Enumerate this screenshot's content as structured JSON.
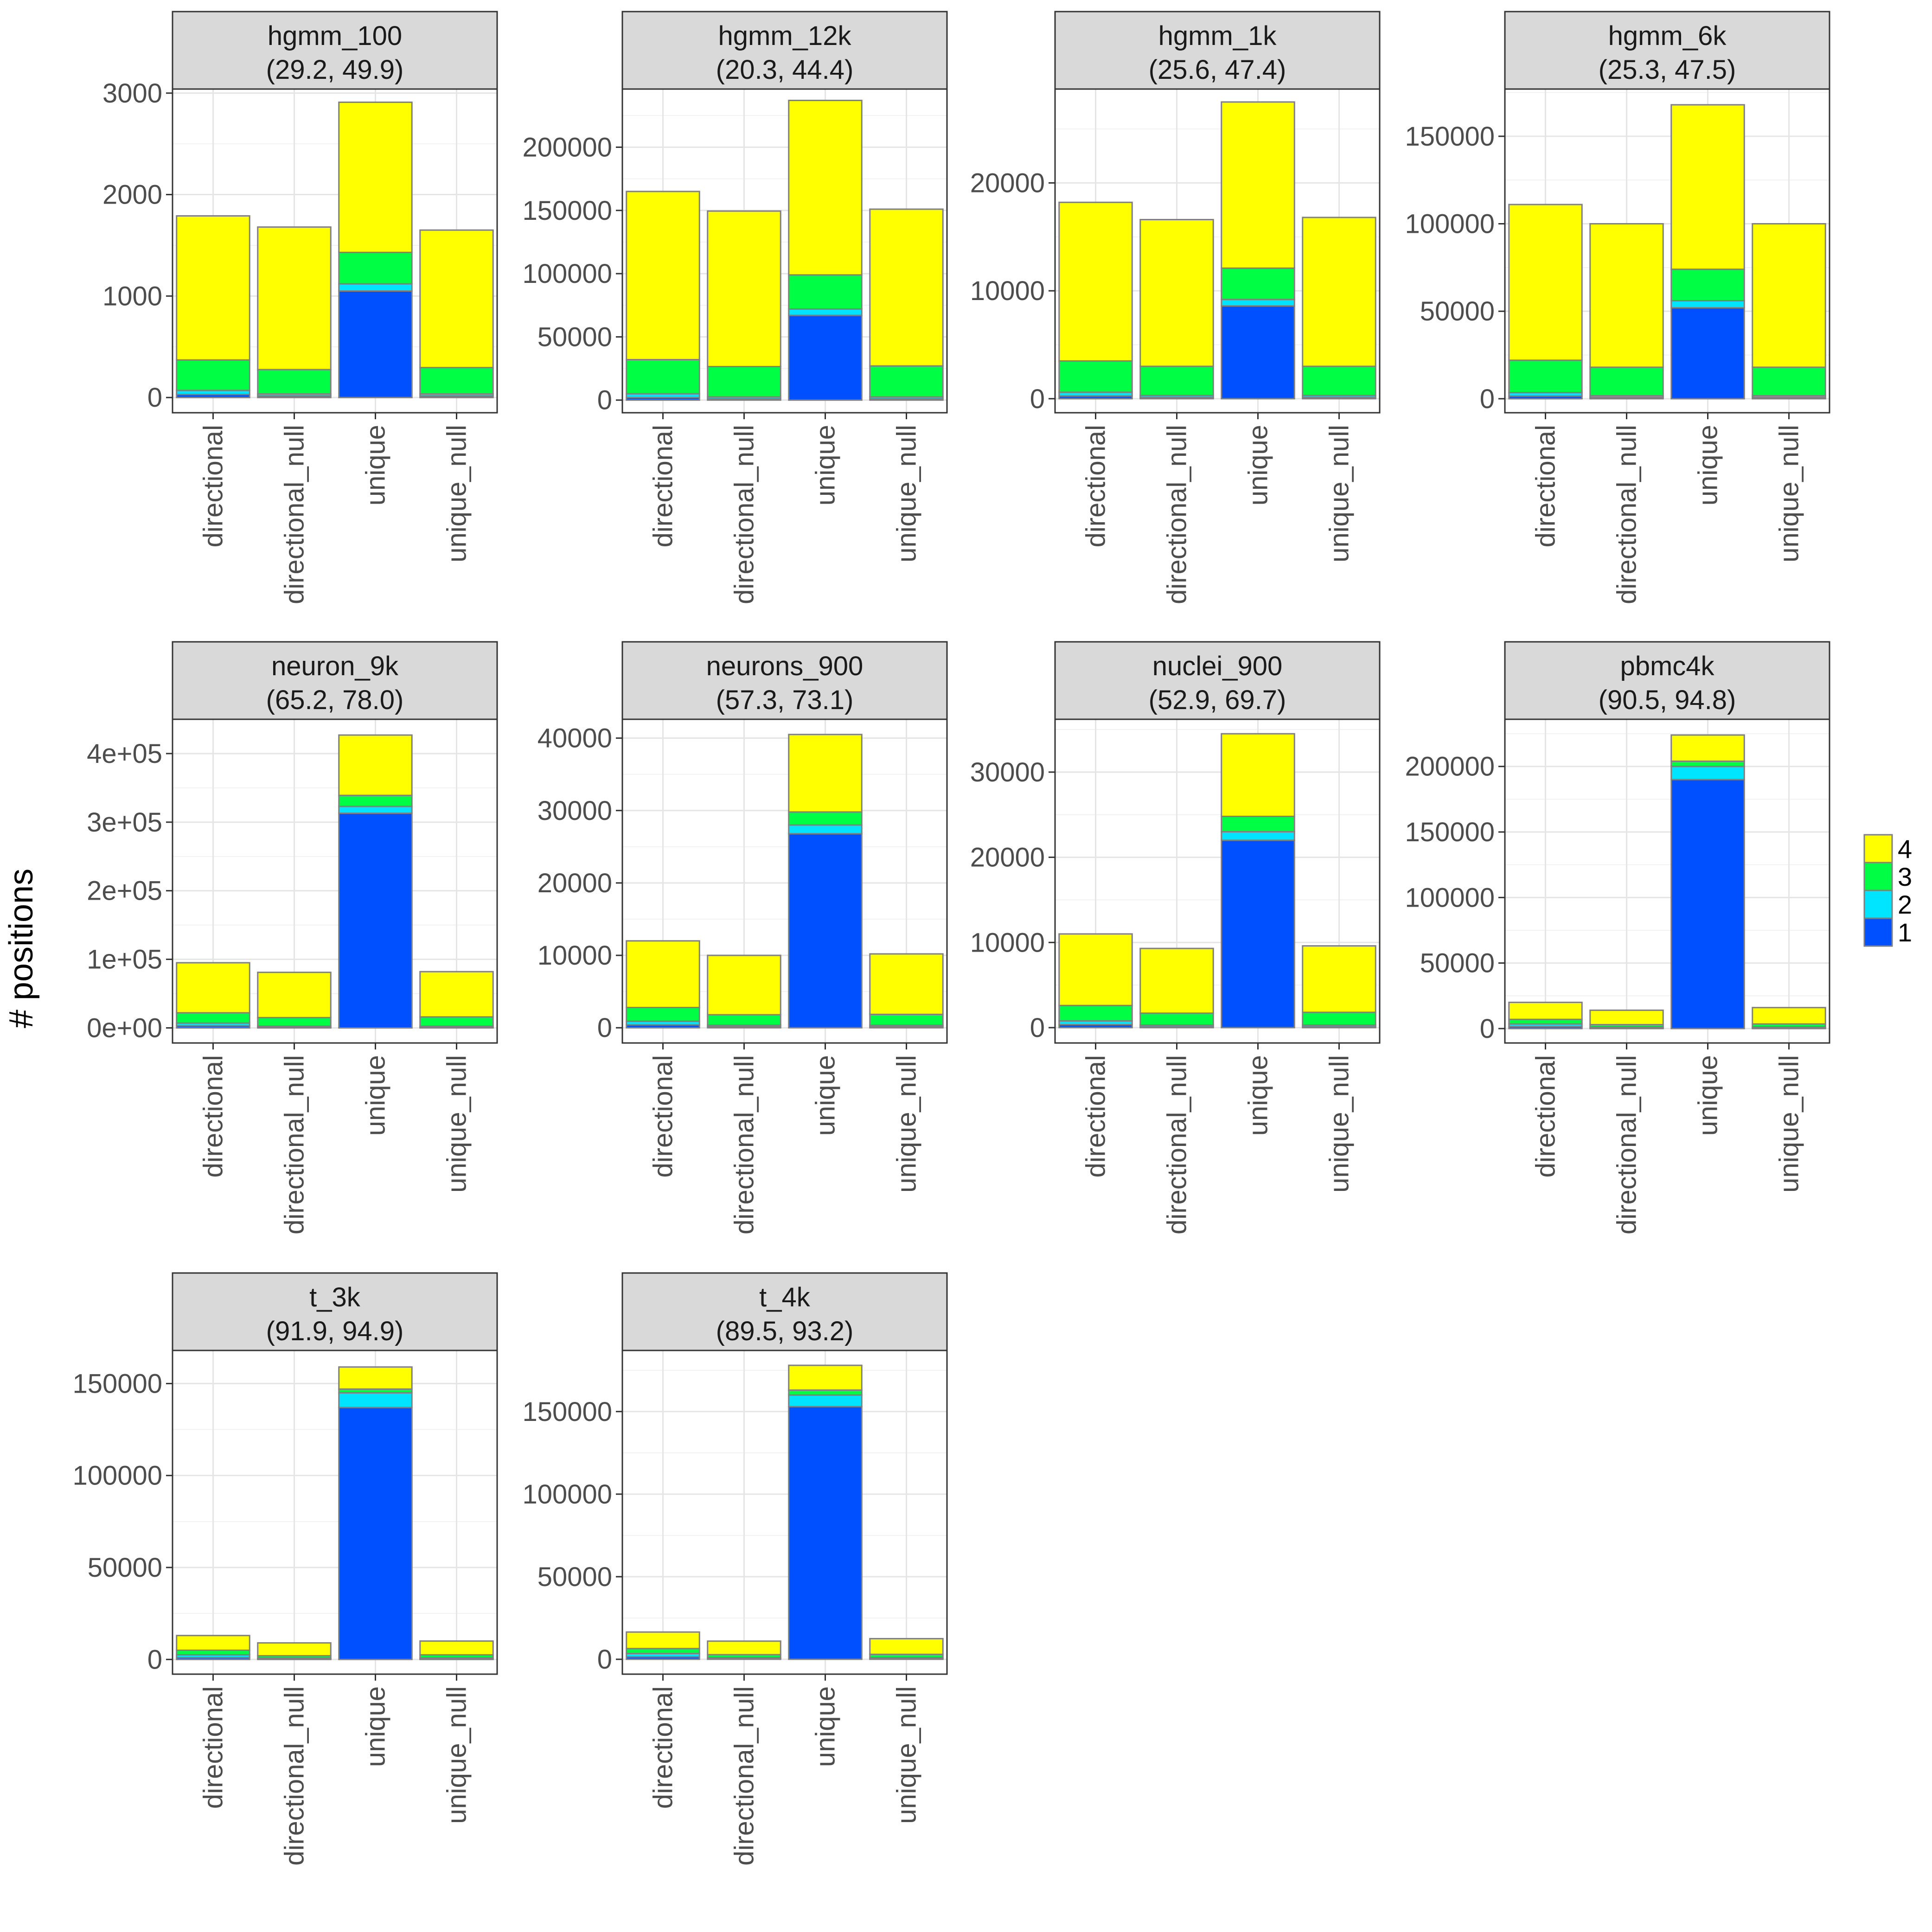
{
  "figure": {
    "ylabel": "# positions",
    "legend": {
      "placement": "right",
      "items": [
        {
          "label": "4",
          "color": "#FFFF00"
        },
        {
          "label": "3",
          "color": "#00FF44"
        },
        {
          "label": "2",
          "color": "#00E5FF"
        },
        {
          "label": "1",
          "color": "#0050FF"
        }
      ]
    },
    "bar_outline_color": "#808080",
    "strip_fill_color": "#D9D9D9"
  },
  "chart_data": [
    {
      "type": "bar",
      "stacked": true,
      "strip_title": "hgmm_100",
      "strip_subtitle": "(29.2, 49.9)",
      "categories": [
        "directional",
        "directional_null",
        "unique",
        "unique_null"
      ],
      "ylim": [
        -150,
        3040
      ],
      "yticks": [
        {
          "value": 0,
          "label": "0"
        },
        {
          "value": 1000,
          "label": "1000"
        },
        {
          "value": 2000,
          "label": "2000"
        },
        {
          "value": 3000,
          "label": "3000"
        }
      ],
      "series": [
        {
          "name": "1",
          "values": [
            30,
            15,
            1050,
            15
          ]
        },
        {
          "name": "2",
          "values": [
            40,
            20,
            70,
            20
          ]
        },
        {
          "name": "3",
          "values": [
            300,
            240,
            310,
            260
          ]
        },
        {
          "name": "4",
          "values": [
            1420,
            1405,
            1480,
            1355
          ]
        }
      ]
    },
    {
      "type": "bar",
      "stacked": true,
      "strip_title": "hgmm_12k",
      "strip_subtitle": "(20.3, 44.4)",
      "categories": [
        "directional",
        "directional_null",
        "unique",
        "unique_null"
      ],
      "ylim": [
        -10000,
        246000
      ],
      "yticks": [
        {
          "value": 0,
          "label": "0"
        },
        {
          "value": 50000,
          "label": "50000"
        },
        {
          "value": 100000,
          "label": "100000"
        },
        {
          "value": 150000,
          "label": "150000"
        },
        {
          "value": 200000,
          "label": "200000"
        }
      ],
      "series": [
        {
          "name": "1",
          "values": [
            2000,
            1000,
            67000,
            1000
          ]
        },
        {
          "name": "2",
          "values": [
            3000,
            1500,
            5000,
            1500
          ]
        },
        {
          "name": "3",
          "values": [
            27000,
            24000,
            27000,
            24500
          ]
        },
        {
          "name": "4",
          "values": [
            133000,
            123000,
            138000,
            124000
          ]
        }
      ]
    },
    {
      "type": "bar",
      "stacked": true,
      "strip_title": "hgmm_1k",
      "strip_subtitle": "(25.6, 47.4)",
      "categories": [
        "directional",
        "directional_null",
        "unique",
        "unique_null"
      ],
      "ylim": [
        -1300,
        28700
      ],
      "yticks": [
        {
          "value": 0,
          "label": "0"
        },
        {
          "value": 10000,
          "label": "10000"
        },
        {
          "value": 20000,
          "label": "20000"
        }
      ],
      "series": [
        {
          "name": "1",
          "values": [
            250,
            120,
            8600,
            120
          ]
        },
        {
          "name": "2",
          "values": [
            350,
            180,
            600,
            180
          ]
        },
        {
          "name": "3",
          "values": [
            2900,
            2700,
            2900,
            2700
          ]
        },
        {
          "name": "4",
          "values": [
            14700,
            13600,
            15400,
            13800
          ]
        }
      ]
    },
    {
      "type": "bar",
      "stacked": true,
      "strip_title": "hgmm_6k",
      "strip_subtitle": "(25.3, 47.5)",
      "categories": [
        "directional",
        "directional_null",
        "unique",
        "unique_null"
      ],
      "ylim": [
        -8000,
        177000
      ],
      "yticks": [
        {
          "value": 0,
          "label": "0"
        },
        {
          "value": 50000,
          "label": "50000"
        },
        {
          "value": 100000,
          "label": "100000"
        },
        {
          "value": 150000,
          "label": "150000"
        }
      ],
      "series": [
        {
          "name": "1",
          "values": [
            1500,
            700,
            52000,
            700
          ]
        },
        {
          "name": "2",
          "values": [
            2000,
            1000,
            4000,
            1000
          ]
        },
        {
          "name": "3",
          "values": [
            18500,
            16300,
            18000,
            16300
          ]
        },
        {
          "name": "4",
          "values": [
            89000,
            82000,
            94000,
            82000
          ]
        }
      ]
    },
    {
      "type": "bar",
      "stacked": true,
      "strip_title": "neuron_9k",
      "strip_subtitle": "(65.2, 78.0)",
      "categories": [
        "directional",
        "directional_null",
        "unique",
        "unique_null"
      ],
      "ylim": [
        -22000,
        450000
      ],
      "yticks": [
        {
          "value": 0,
          "label": "0e+00"
        },
        {
          "value": 100000,
          "label": "1e+05"
        },
        {
          "value": 200000,
          "label": "2e+05"
        },
        {
          "value": 300000,
          "label": "3e+05"
        },
        {
          "value": 400000,
          "label": "4e+05"
        }
      ],
      "series": [
        {
          "name": "1",
          "values": [
            3000,
            1000,
            313000,
            1000
          ]
        },
        {
          "name": "2",
          "values": [
            4000,
            1500,
            10000,
            1500
          ]
        },
        {
          "name": "3",
          "values": [
            15000,
            12500,
            16000,
            13500
          ]
        },
        {
          "name": "4",
          "values": [
            73000,
            66000,
            88000,
            66000
          ]
        }
      ]
    },
    {
      "type": "bar",
      "stacked": true,
      "strip_title": "neurons_900",
      "strip_subtitle": "(57.3, 73.1)",
      "categories": [
        "directional",
        "directional_null",
        "unique",
        "unique_null"
      ],
      "ylim": [
        -2100,
        42600
      ],
      "yticks": [
        {
          "value": 0,
          "label": "0"
        },
        {
          "value": 10000,
          "label": "10000"
        },
        {
          "value": 20000,
          "label": "20000"
        },
        {
          "value": 30000,
          "label": "30000"
        },
        {
          "value": 40000,
          "label": "40000"
        }
      ],
      "series": [
        {
          "name": "1",
          "values": [
            400,
            150,
            26800,
            150
          ]
        },
        {
          "name": "2",
          "values": [
            500,
            200,
            1200,
            200
          ]
        },
        {
          "name": "3",
          "values": [
            1900,
            1450,
            1800,
            1500
          ]
        },
        {
          "name": "4",
          "values": [
            9200,
            8200,
            10700,
            8350
          ]
        }
      ]
    },
    {
      "type": "bar",
      "stacked": true,
      "strip_title": "nuclei_900",
      "strip_subtitle": "(52.9, 69.7)",
      "categories": [
        "directional",
        "directional_null",
        "unique",
        "unique_null"
      ],
      "ylim": [
        -1800,
        36200
      ],
      "yticks": [
        {
          "value": 0,
          "label": "0"
        },
        {
          "value": 10000,
          "label": "10000"
        },
        {
          "value": 20000,
          "label": "20000"
        },
        {
          "value": 30000,
          "label": "30000"
        }
      ],
      "series": [
        {
          "name": "1",
          "values": [
            350,
            120,
            22000,
            120
          ]
        },
        {
          "name": "2",
          "values": [
            450,
            180,
            1000,
            180
          ]
        },
        {
          "name": "3",
          "values": [
            1800,
            1400,
            1800,
            1500
          ]
        },
        {
          "name": "4",
          "values": [
            8400,
            7600,
            9700,
            7800
          ]
        }
      ]
    },
    {
      "type": "bar",
      "stacked": true,
      "strip_title": "pbmc4k",
      "strip_subtitle": "(90.5, 94.8)",
      "categories": [
        "directional",
        "directional_null",
        "unique",
        "unique_null"
      ],
      "ylim": [
        -11000,
        236000
      ],
      "yticks": [
        {
          "value": 0,
          "label": "0"
        },
        {
          "value": 50000,
          "label": "50000"
        },
        {
          "value": 100000,
          "label": "100000"
        },
        {
          "value": 150000,
          "label": "150000"
        },
        {
          "value": 200000,
          "label": "200000"
        }
      ],
      "series": [
        {
          "name": "1",
          "values": [
            1500,
            500,
            190000,
            500
          ]
        },
        {
          "name": "2",
          "values": [
            2000,
            700,
            10000,
            700
          ]
        },
        {
          "name": "3",
          "values": [
            3500,
            1800,
            4000,
            2300
          ]
        },
        {
          "name": "4",
          "values": [
            13000,
            11000,
            20000,
            12500
          ]
        }
      ]
    },
    {
      "type": "bar",
      "stacked": true,
      "strip_title": "t_3k",
      "strip_subtitle": "(91.9, 94.9)",
      "categories": [
        "directional",
        "directional_null",
        "unique",
        "unique_null"
      ],
      "ylim": [
        -8000,
        168000
      ],
      "yticks": [
        {
          "value": 0,
          "label": "0"
        },
        {
          "value": 50000,
          "label": "50000"
        },
        {
          "value": 100000,
          "label": "100000"
        },
        {
          "value": 150000,
          "label": "150000"
        }
      ],
      "series": [
        {
          "name": "1",
          "values": [
            1000,
            300,
            137000,
            300
          ]
        },
        {
          "name": "2",
          "values": [
            1500,
            500,
            8000,
            500
          ]
        },
        {
          "name": "3",
          "values": [
            2500,
            1200,
            2000,
            1700
          ]
        },
        {
          "name": "4",
          "values": [
            8000,
            7000,
            12000,
            7500
          ]
        }
      ]
    },
    {
      "type": "bar",
      "stacked": true,
      "strip_title": "t_4k",
      "strip_subtitle": "(89.5, 93.2)",
      "categories": [
        "directional",
        "directional_null",
        "unique",
        "unique_null"
      ],
      "ylim": [
        -9000,
        187000
      ],
      "yticks": [
        {
          "value": 0,
          "label": "0"
        },
        {
          "value": 50000,
          "label": "50000"
        },
        {
          "value": 100000,
          "label": "100000"
        },
        {
          "value": 150000,
          "label": "150000"
        }
      ],
      "series": [
        {
          "name": "1",
          "values": [
            1500,
            400,
            153000,
            400
          ]
        },
        {
          "name": "2",
          "values": [
            2000,
            600,
            7000,
            600
          ]
        },
        {
          "name": "3",
          "values": [
            3000,
            1800,
            3000,
            2000
          ]
        },
        {
          "name": "4",
          "values": [
            10000,
            8200,
            15000,
            9500
          ]
        }
      ]
    }
  ]
}
